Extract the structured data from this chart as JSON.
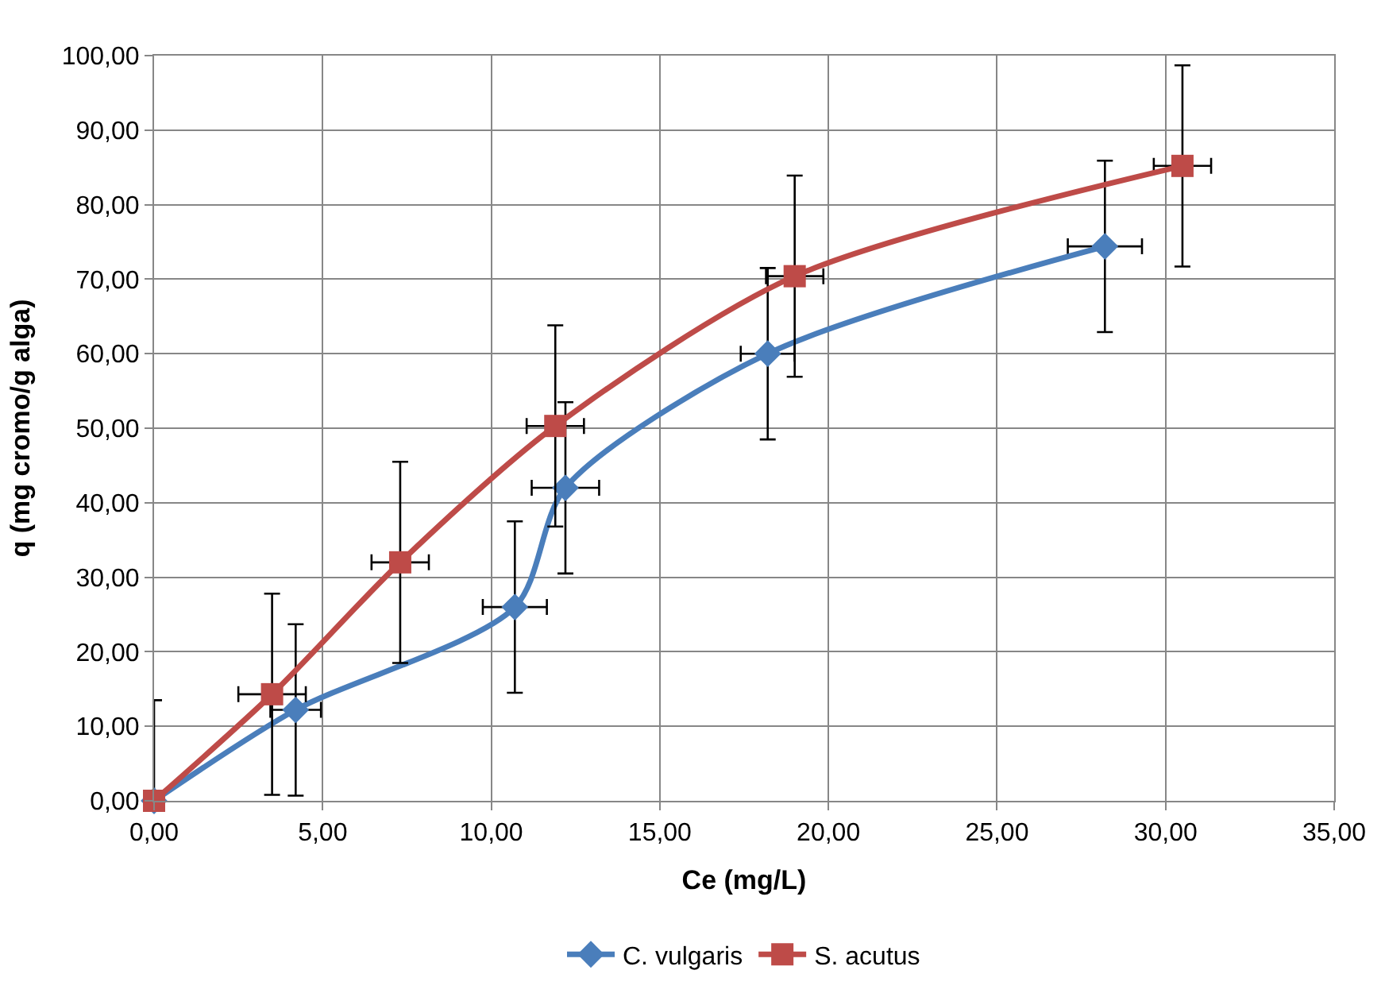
{
  "chart_data": {
    "type": "line",
    "xlabel": "Ce (mg/L)",
    "ylabel": "q (mg cromo/g alga)",
    "xlim": [
      0,
      35
    ],
    "ylim": [
      0,
      100
    ],
    "xticks": [
      {
        "value": 0,
        "label": "0,00"
      },
      {
        "value": 5,
        "label": "5,00"
      },
      {
        "value": 10,
        "label": "10,00"
      },
      {
        "value": 15,
        "label": "15,00"
      },
      {
        "value": 20,
        "label": "20,00"
      },
      {
        "value": 25,
        "label": "25,00"
      },
      {
        "value": 30,
        "label": "30,00"
      },
      {
        "value": 35,
        "label": "35,00"
      }
    ],
    "yticks": [
      {
        "value": 0,
        "label": "0,00"
      },
      {
        "value": 10,
        "label": "10,00"
      },
      {
        "value": 20,
        "label": "20,00"
      },
      {
        "value": 30,
        "label": "30,00"
      },
      {
        "value": 40,
        "label": "40,00"
      },
      {
        "value": 50,
        "label": "50,00"
      },
      {
        "value": 60,
        "label": "60,00"
      },
      {
        "value": 70,
        "label": "70,00"
      },
      {
        "value": 80,
        "label": "80,00"
      },
      {
        "value": 90,
        "label": "90,00"
      },
      {
        "value": 100,
        "label": "100,00"
      }
    ],
    "grid": true,
    "legend": "bottom",
    "series": [
      {
        "name": "C. vulgaris",
        "color": "#4a7ebb",
        "marker": "diamond",
        "x": [
          0,
          4.2,
          10.7,
          12.2,
          18.2,
          28.2
        ],
        "values": [
          0,
          12.2,
          26,
          42,
          60,
          74.4
        ],
        "errors": [
          [
            0,
            13.5
          ],
          11.5,
          11.5,
          11.5,
          11.5,
          11.5
        ],
        "xerrors": [
          null,
          0.75,
          0.95,
          1.0,
          0.8,
          1.1
        ]
      },
      {
        "name": "S. acutus",
        "color": "#be4b48",
        "marker": "square",
        "x": [
          0,
          3.5,
          7.3,
          11.9,
          19,
          30.5
        ],
        "values": [
          0,
          14.3,
          32,
          50.3,
          70.4,
          85.2
        ],
        "errors": [
          null,
          13.5,
          13.5,
          13.5,
          13.5,
          13.5
        ],
        "xerrors": [
          null,
          1.0,
          0.85,
          0.85,
          0.85,
          0.85
        ]
      }
    ]
  }
}
